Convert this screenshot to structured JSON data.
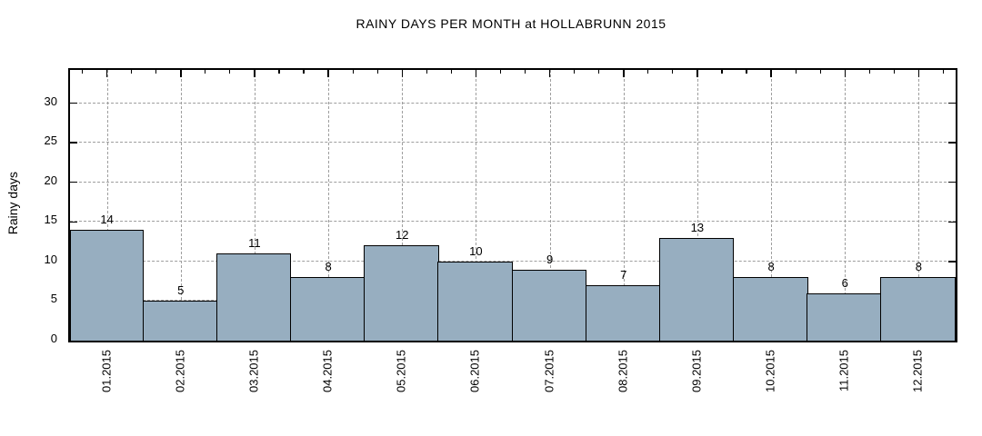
{
  "chart_data": {
    "type": "bar",
    "title": "RAINY DAYS PER MONTH at HOLLABRUNN 2015",
    "xlabel": "",
    "ylabel": "Rainy days",
    "categories": [
      "01.2015",
      "02.2015",
      "03.2015",
      "04.2015",
      "05.2015",
      "06.2015",
      "07.2015",
      "08.2015",
      "09.2015",
      "10.2015",
      "11.2015",
      "12.2015"
    ],
    "values": [
      14,
      5,
      11,
      8,
      12,
      10,
      9,
      7,
      13,
      8,
      6,
      8
    ],
    "ylim": [
      0,
      34.2
    ],
    "yticks": [
      0,
      5,
      10,
      15,
      20,
      25,
      30
    ],
    "x_minor_ticks_per_interval": 3,
    "grid": true,
    "grid_style": "dashed",
    "value_labels": true,
    "legend": "none",
    "colors": {
      "bar_fill": "#97AEC0",
      "bar_border": "#000000",
      "grid_line": "#9e9e9e",
      "axis_border": "#000000",
      "text": "#000000",
      "background": "#ffffff"
    }
  }
}
